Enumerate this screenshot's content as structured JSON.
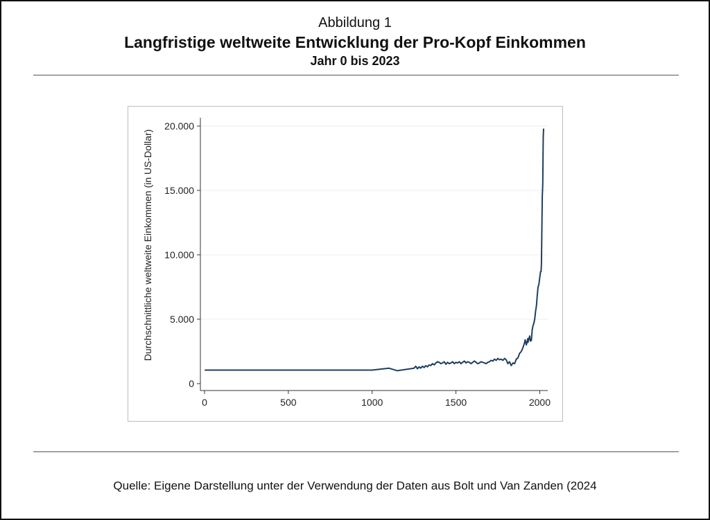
{
  "figure": {
    "label": "Abbildung 1",
    "title": "Langfristige weltweite Entwicklung der Pro-Kopf Einkommen",
    "subtitle": "Jahr 0 bis 2023",
    "source": "Quelle: Eigene Darstellung unter der Verwendung der Daten aus Bolt und Van Zanden (2024"
  },
  "chart_data": {
    "type": "line",
    "title": "",
    "xlabel": "",
    "ylabel": "Durchschnittliche weltweite Einkommen (in US-Dollar)",
    "xlim": [
      0,
      2023
    ],
    "ylim": [
      0,
      20000
    ],
    "x_ticks": [
      0,
      500,
      1000,
      1500,
      2000
    ],
    "x_tick_labels": [
      "0",
      "500",
      "1000",
      "1500",
      "2000"
    ],
    "y_ticks": [
      0,
      5000,
      10000,
      15000,
      20000
    ],
    "y_tick_labels": [
      "0",
      "5.000",
      "10.000",
      "15.000",
      "20.000"
    ],
    "grid": "horizontal",
    "line_color": "#1f3f5f",
    "series": [
      {
        "name": "Pro-Kopf Einkommen",
        "x": [
          1,
          1000,
          1100,
          1150,
          1250,
          1260,
          1270,
          1280,
          1290,
          1300,
          1310,
          1320,
          1330,
          1340,
          1350,
          1360,
          1370,
          1380,
          1390,
          1400,
          1410,
          1420,
          1430,
          1440,
          1450,
          1460,
          1470,
          1480,
          1490,
          1500,
          1510,
          1520,
          1530,
          1540,
          1550,
          1560,
          1570,
          1580,
          1590,
          1600,
          1610,
          1620,
          1630,
          1640,
          1650,
          1660,
          1670,
          1680,
          1690,
          1700,
          1710,
          1720,
          1730,
          1740,
          1750,
          1760,
          1770,
          1780,
          1790,
          1800,
          1810,
          1820,
          1830,
          1840,
          1850,
          1860,
          1870,
          1880,
          1890,
          1900,
          1910,
          1913,
          1920,
          1929,
          1930,
          1938,
          1940,
          1945,
          1950,
          1955,
          1960,
          1965,
          1970,
          1975,
          1980,
          1985,
          1990,
          1995,
          2000,
          2005,
          2008,
          2009,
          2010,
          2015,
          2018,
          2019,
          2020,
          2021,
          2022,
          2023
        ],
        "y": [
          1050,
          1050,
          1200,
          1000,
          1200,
          1350,
          1150,
          1300,
          1200,
          1350,
          1250,
          1400,
          1300,
          1450,
          1400,
          1550,
          1450,
          1600,
          1700,
          1650,
          1550,
          1600,
          1700,
          1500,
          1650,
          1550,
          1600,
          1700,
          1550,
          1650,
          1600,
          1700,
          1550,
          1650,
          1750,
          1600,
          1700,
          1650,
          1550,
          1650,
          1750,
          1650,
          1550,
          1600,
          1700,
          1650,
          1600,
          1550,
          1650,
          1700,
          1800,
          1750,
          1900,
          1800,
          1950,
          1850,
          1900,
          1800,
          1950,
          1850,
          1550,
          1700,
          1400,
          1600,
          1550,
          1900,
          2000,
          2350,
          2500,
          2800,
          3200,
          3400,
          3000,
          3500,
          3200,
          3600,
          3700,
          3300,
          3350,
          4200,
          4500,
          4700,
          5000,
          5600,
          6000,
          6800,
          7500,
          7700,
          8200,
          8700,
          8700,
          9000,
          9300,
          14500,
          15500,
          16500,
          18300,
          19200,
          19500,
          19800
        ]
      }
    ]
  }
}
